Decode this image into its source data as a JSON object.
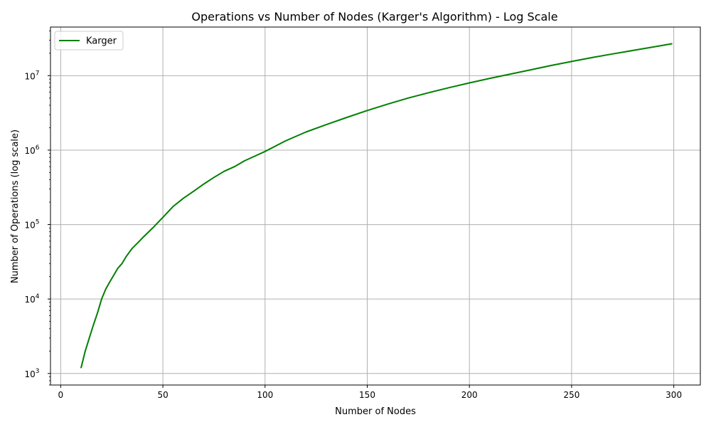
{
  "chart_data": {
    "type": "line",
    "title": "Operations vs Number of Nodes (Karger's Algorithm) - Log Scale",
    "xlabel": "Number of Nodes",
    "ylabel": "Number of Operations (log scale)",
    "xlim": [
      -5,
      313
    ],
    "ylim": [
      700,
      45000000
    ],
    "yscale": "log",
    "xticks": [
      0,
      50,
      100,
      150,
      200,
      250,
      300
    ],
    "xtick_labels": [
      "0",
      "50",
      "100",
      "150",
      "200",
      "250",
      "300"
    ],
    "yticks": [
      1000,
      10000,
      100000,
      1000000,
      10000000
    ],
    "ytick_labels": [
      {
        "base": "10",
        "exp": "3"
      },
      {
        "base": "10",
        "exp": "4"
      },
      {
        "base": "10",
        "exp": "5"
      },
      {
        "base": "10",
        "exp": "6"
      },
      {
        "base": "10",
        "exp": "7"
      }
    ],
    "grid": true,
    "legend_position": "top-left",
    "series": [
      {
        "name": "Karger",
        "color": "#008000",
        "x": [
          10,
          12,
          14,
          16,
          18,
          20,
          22,
          24,
          26,
          28,
          30,
          32,
          35,
          38,
          40,
          45,
          50,
          55,
          60,
          65,
          70,
          75,
          80,
          85,
          90,
          95,
          100,
          110,
          120,
          130,
          140,
          150,
          160,
          170,
          180,
          190,
          200,
          210,
          220,
          230,
          240,
          250,
          260,
          270,
          280,
          290,
          299
        ],
        "y": [
          1200,
          2000,
          3000,
          4500,
          6500,
          10000,
          13500,
          17000,
          21000,
          26000,
          30000,
          37000,
          48000,
          58000,
          66000,
          90000,
          125000,
          175000,
          225000,
          280000,
          350000,
          430000,
          520000,
          600000,
          720000,
          830000,
          960000,
          1330000,
          1750000,
          2200000,
          2750000,
          3400000,
          4150000,
          5000000,
          5900000,
          6900000,
          8000000,
          9200000,
          10500000,
          12000000,
          13700000,
          15500000,
          17500000,
          19600000,
          21800000,
          24300000,
          26800000
        ]
      }
    ]
  }
}
